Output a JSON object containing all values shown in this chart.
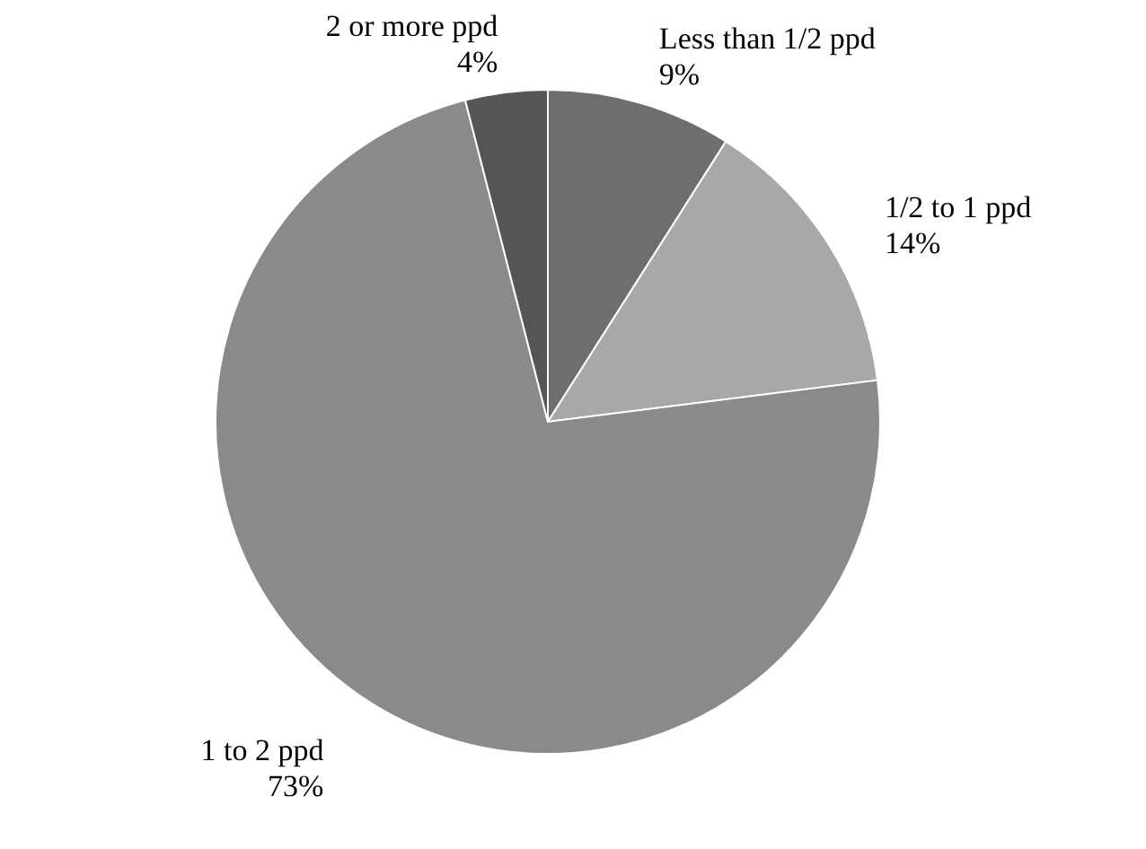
{
  "chart_data": {
    "type": "pie",
    "categories": [
      "Less than 1/2 ppd",
      "1/2 to 1 ppd",
      "1 to 2 ppd",
      "2 or more ppd"
    ],
    "values": [
      9,
      14,
      73,
      4
    ],
    "value_labels": [
      "9%",
      "14%",
      "73%",
      "4%"
    ],
    "colors": [
      "#6e6e6e",
      "#a8a8a8",
      "#8a8a8a",
      "#555555"
    ],
    "legend": false
  }
}
